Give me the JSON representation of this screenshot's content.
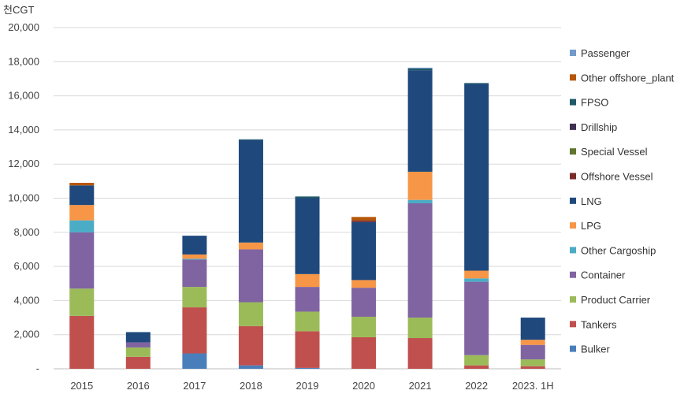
{
  "chart_data": {
    "type": "bar",
    "stacked": true,
    "ylabel": "천CGT",
    "xlabel": "",
    "ylim": [
      0,
      20000
    ],
    "y_ticks": [
      {
        "value": 0,
        "label": "-"
      },
      {
        "value": 2000,
        "label": "2,000"
      },
      {
        "value": 4000,
        "label": "4,000"
      },
      {
        "value": 6000,
        "label": "6,000"
      },
      {
        "value": 8000,
        "label": "8,000"
      },
      {
        "value": 10000,
        "label": "10,000"
      },
      {
        "value": 12000,
        "label": "12,000"
      },
      {
        "value": 14000,
        "label": "14,000"
      },
      {
        "value": 16000,
        "label": "16,000"
      },
      {
        "value": 18000,
        "label": "18,000"
      },
      {
        "value": 20000,
        "label": "20,000"
      }
    ],
    "grid": true,
    "legend_position": "right",
    "categories": [
      "2015",
      "2016",
      "2017",
      "2018",
      "2019",
      "2020",
      "2021",
      "2022",
      "2023. 1H"
    ],
    "series": [
      {
        "name": "Bulker",
        "color": "#4a7ebb",
        "values": [
          0,
          0,
          900,
          200,
          50,
          0,
          0,
          0,
          0
        ]
      },
      {
        "name": "Tankers",
        "color": "#c0504d",
        "values": [
          3100,
          700,
          2700,
          2300,
          2150,
          1850,
          1800,
          200,
          150
        ]
      },
      {
        "name": "Product Carrier",
        "color": "#9bbb59",
        "values": [
          1600,
          550,
          1200,
          1400,
          1150,
          1200,
          1200,
          600,
          400
        ]
      },
      {
        "name": "Container",
        "color": "#8064a2",
        "values": [
          3300,
          300,
          1600,
          3100,
          1450,
          1700,
          6700,
          4300,
          850
        ]
      },
      {
        "name": "Other Cargoship",
        "color": "#4bacc6",
        "values": [
          700,
          0,
          50,
          0,
          0,
          0,
          200,
          200,
          0
        ]
      },
      {
        "name": "LPG",
        "color": "#f79646",
        "values": [
          900,
          0,
          250,
          400,
          750,
          450,
          1650,
          450,
          300
        ]
      },
      {
        "name": "LNG",
        "color": "#1f497d",
        "values": [
          1150,
          600,
          1100,
          6000,
          4450,
          3400,
          5950,
          10950,
          1300
        ]
      },
      {
        "name": "Offshore Vessel",
        "color": "#772c2a",
        "values": [
          0,
          0,
          0,
          0,
          0,
          100,
          0,
          0,
          0
        ]
      },
      {
        "name": "Special Vessel",
        "color": "#5f7530",
        "values": [
          0,
          0,
          0,
          0,
          0,
          0,
          0,
          0,
          0
        ]
      },
      {
        "name": "Drillship",
        "color": "#403152",
        "values": [
          0,
          0,
          0,
          0,
          0,
          0,
          0,
          0,
          0
        ]
      },
      {
        "name": "FPSO",
        "color": "#215968",
        "values": [
          0,
          0,
          0,
          50,
          100,
          0,
          100,
          50,
          0
        ]
      },
      {
        "name": "Other offshore_plant",
        "color": "#b65708",
        "values": [
          150,
          0,
          0,
          0,
          0,
          200,
          0,
          0,
          0
        ]
      },
      {
        "name": "Passenger",
        "color": "#729aca",
        "values": [
          0,
          0,
          0,
          0,
          0,
          0,
          50,
          0,
          0
        ]
      }
    ],
    "legend_order": [
      "Passenger",
      "Other offshore_plant",
      "FPSO",
      "Drillship",
      "Special Vessel",
      "Offshore Vessel",
      "LNG",
      "LPG",
      "Other Cargoship",
      "Container",
      "Product Carrier",
      "Tankers",
      "Bulker"
    ]
  }
}
